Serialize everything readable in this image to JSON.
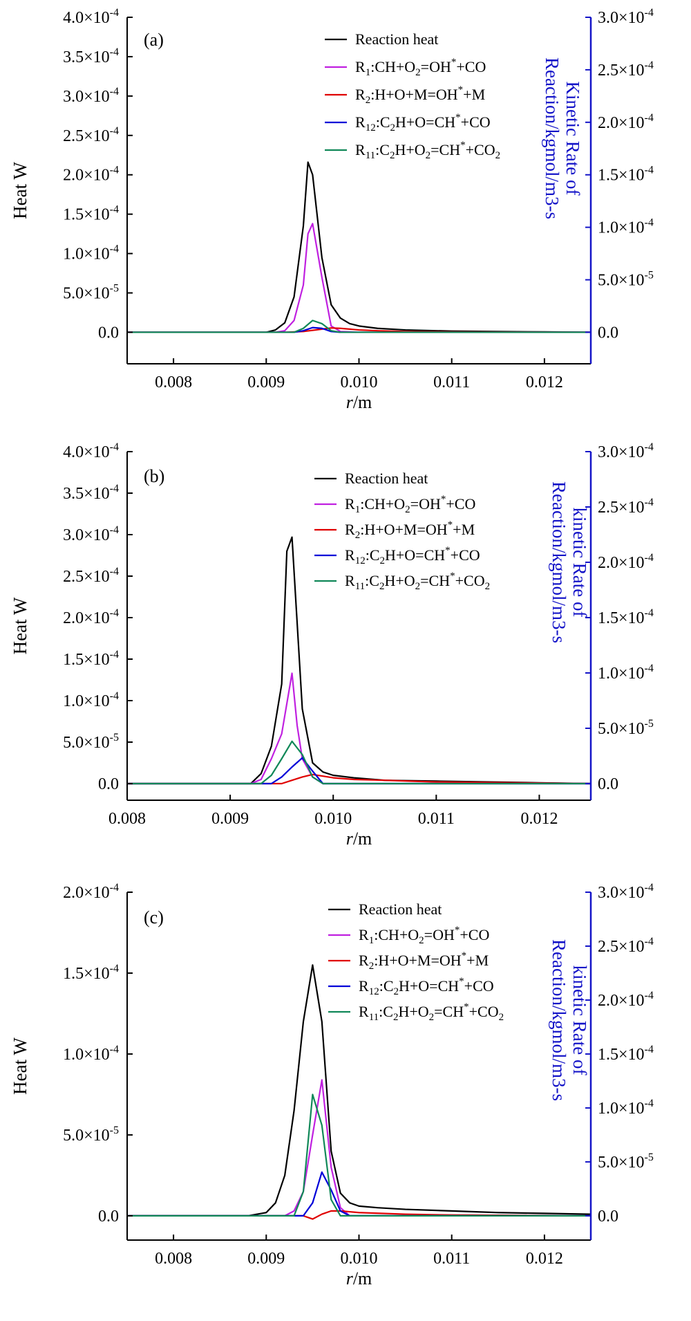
{
  "colors": {
    "reaction_heat": "#000000",
    "R1": "#c020e0",
    "R2": "#e00000",
    "R12": "#0000d8",
    "R11": "#108858",
    "right_axis": "#1414c8",
    "axis": "#000000"
  },
  "legend_entries": [
    {
      "id": "heat",
      "base": "Reaction heat",
      "sub": "",
      "formula": []
    },
    {
      "id": "R1",
      "base": "R",
      "sub": "1",
      "formula": [
        [
          "CH+O",
          ""
        ],
        [
          "2",
          "sub"
        ],
        [
          "=OH",
          ""
        ],
        [
          "*",
          "sup"
        ],
        [
          "+CO",
          ""
        ]
      ]
    },
    {
      "id": "R2",
      "base": "R",
      "sub": "2",
      "formula": [
        [
          "H+O+M=OH",
          ""
        ],
        [
          "*",
          "sup"
        ],
        [
          "+M",
          ""
        ]
      ]
    },
    {
      "id": "R12",
      "base": "R",
      "sub": "12",
      "formula": [
        [
          "C",
          ""
        ],
        [
          "2",
          "sub"
        ],
        [
          "H+O=CH",
          ""
        ],
        [
          "*",
          "sup"
        ],
        [
          "+CO",
          ""
        ]
      ]
    },
    {
      "id": "R11",
      "base": "R",
      "sub": "11",
      "formula": [
        [
          "C",
          ""
        ],
        [
          "2",
          "sub"
        ],
        [
          "H+O",
          ""
        ],
        [
          "2",
          "sub"
        ],
        [
          "=CH",
          ""
        ],
        [
          "*",
          "sup"
        ],
        [
          "+CO",
          ""
        ],
        [
          "2",
          "sub"
        ]
      ]
    }
  ],
  "chart_data": [
    {
      "type": "line",
      "panel_label": "(a)",
      "xlabel": "r/m",
      "ylabel_left": "Heat W",
      "ylabel_right_lines": [
        "Kinetic Rate of",
        "Reaction/kgmol/m3-s"
      ],
      "xlim": [
        0.0075,
        0.0125
      ],
      "x_ticks": [
        0.008,
        0.009,
        0.01,
        0.011,
        0.012
      ],
      "x_tick_labels": [
        "0.008",
        "0.009",
        "0.010",
        "0.011",
        "0.012"
      ],
      "ylim_left": [
        -4e-05,
        0.0004
      ],
      "y_ticks_left": [
        0,
        5e-05,
        0.0001,
        0.00015,
        0.0002,
        0.00025,
        0.0003,
        0.00035,
        0.0004
      ],
      "y_tick_labels_left": [
        [
          "0.0",
          ""
        ],
        [
          "5.0×10",
          "-5"
        ],
        [
          "1.0×10",
          "-4"
        ],
        [
          "1.5×10",
          "-4"
        ],
        [
          "2.0×10",
          "-4"
        ],
        [
          "2.5×10",
          "-4"
        ],
        [
          "3.0×10",
          "-4"
        ],
        [
          "3.5×10",
          "-4"
        ],
        [
          "4.0×10",
          "-4"
        ]
      ],
      "ylim_right": [
        -3e-05,
        0.0003
      ],
      "y_ticks_right": [
        0,
        5e-05,
        0.0001,
        0.00015,
        0.0002,
        0.00025,
        0.0003
      ],
      "y_tick_labels_right": [
        [
          "0.0",
          ""
        ],
        [
          "5.0×10",
          "-5"
        ],
        [
          "1.0×10",
          "-4"
        ],
        [
          "1.5×10",
          "-4"
        ],
        [
          "2.0×10",
          "-4"
        ],
        [
          "2.5×10",
          "-4"
        ],
        [
          "3.0×10",
          "-4"
        ]
      ],
      "legend": "top-center",
      "series": [
        {
          "id": "heat",
          "x": [
            0.0075,
            0.009,
            0.0091,
            0.0092,
            0.0093,
            0.0094,
            0.00945,
            0.0095,
            0.0096,
            0.0097,
            0.0098,
            0.0099,
            0.01,
            0.0102,
            0.0105,
            0.011,
            0.0115,
            0.012,
            0.0125
          ],
          "y": [
            0,
            0,
            3e-06,
            1.2e-05,
            4.5e-05,
            0.000135,
            0.000216,
            0.0002,
            9.5e-05,
            3.5e-05,
            1.8e-05,
            1.1e-05,
            8e-06,
            5e-06,
            3e-06,
            1.5e-06,
            1e-06,
            5e-07,
            0
          ]
        },
        {
          "id": "R1",
          "x": [
            0.0075,
            0.0091,
            0.0092,
            0.0093,
            0.0094,
            0.00945,
            0.0095,
            0.0096,
            0.0097,
            0.0098,
            0.01,
            0.0125
          ],
          "y": [
            0,
            0,
            2e-06,
            1.5e-05,
            6e-05,
            0.000125,
            0.000138,
            7e-05,
            8e-06,
            1e-06,
            0,
            0
          ]
        },
        {
          "id": "R2",
          "x": [
            0.0075,
            0.0092,
            0.0094,
            0.0096,
            0.0097,
            0.0098,
            0.01,
            0.0102,
            0.0105,
            0.011,
            0.0125
          ],
          "y": [
            0,
            0,
            1e-06,
            4e-06,
            5.5e-06,
            5e-06,
            3e-06,
            2e-06,
            1e-06,
            5e-07,
            0
          ]
        },
        {
          "id": "R12",
          "x": [
            0.0075,
            0.0093,
            0.0094,
            0.0095,
            0.0096,
            0.0097,
            0.0098,
            0.0125
          ],
          "y": [
            0,
            0,
            2e-06,
            6e-06,
            5e-06,
            1e-06,
            0,
            0
          ]
        },
        {
          "id": "R11",
          "x": [
            0.0075,
            0.0093,
            0.0094,
            0.0095,
            0.0096,
            0.0097,
            0.0098,
            0.0125
          ],
          "y": [
            0,
            0,
            5e-06,
            1.5e-05,
            1.1e-05,
            2e-06,
            0,
            0
          ]
        }
      ]
    },
    {
      "type": "line",
      "panel_label": "(b)",
      "xlabel": "r/m",
      "ylabel_left": "Heat W",
      "ylabel_right_lines": [
        "kinetic Rate of",
        "Reaction/kgmol/m3-s"
      ],
      "xlim": [
        0.008,
        0.0125
      ],
      "x_ticks": [
        0.008,
        0.009,
        0.01,
        0.011,
        0.012
      ],
      "x_tick_labels": [
        "0.008",
        "0.009",
        "0.010",
        "0.011",
        "0.012"
      ],
      "ylim_left": [
        -2e-05,
        0.0004
      ],
      "y_ticks_left": [
        0,
        5e-05,
        0.0001,
        0.00015,
        0.0002,
        0.00025,
        0.0003,
        0.00035,
        0.0004
      ],
      "y_tick_labels_left": [
        [
          "0.0",
          ""
        ],
        [
          "5.0×10",
          "-5"
        ],
        [
          "1.0×10",
          "-4"
        ],
        [
          "1.5×10",
          "-4"
        ],
        [
          "2.0×10",
          "-4"
        ],
        [
          "2.5×10",
          "-4"
        ],
        [
          "3.0×10",
          "-4"
        ],
        [
          "3.5×10",
          "-4"
        ],
        [
          "4.0×10",
          "-4"
        ]
      ],
      "ylim_right": [
        -1.5e-05,
        0.0003
      ],
      "y_ticks_right": [
        0,
        5e-05,
        0.0001,
        0.00015,
        0.0002,
        0.00025,
        0.0003
      ],
      "y_tick_labels_right": [
        [
          "0.0",
          ""
        ],
        [
          "5.0×10",
          "-5"
        ],
        [
          "1.0×10",
          "-4"
        ],
        [
          "1.5×10",
          "-4"
        ],
        [
          "2.0×10",
          "-4"
        ],
        [
          "2.5×10",
          "-4"
        ],
        [
          "3.0×10",
          "-4"
        ]
      ],
      "legend": "top-center",
      "series": [
        {
          "id": "heat",
          "x": [
            0.008,
            0.0092,
            0.0093,
            0.0094,
            0.0095,
            0.00955,
            0.0096,
            0.0097,
            0.0098,
            0.0099,
            0.01,
            0.0102,
            0.0105,
            0.011,
            0.0115,
            0.012,
            0.0125
          ],
          "y": [
            0,
            0,
            1.2e-05,
            4.5e-05,
            0.00012,
            0.00028,
            0.000297,
            9e-05,
            2.5e-05,
            1.4e-05,
            1e-05,
            7e-06,
            4e-06,
            3e-06,
            2e-06,
            1e-06,
            0
          ]
        },
        {
          "id": "R1",
          "x": [
            0.008,
            0.0092,
            0.0093,
            0.0094,
            0.0095,
            0.0096,
            0.00965,
            0.0097,
            0.0098,
            0.0099,
            0.0125
          ],
          "y": [
            0,
            0,
            5e-06,
            3e-05,
            6e-05,
            0.000133,
            7e-05,
            3e-05,
            8e-06,
            0,
            0
          ]
        },
        {
          "id": "R2",
          "x": [
            0.008,
            0.0095,
            0.0096,
            0.0097,
            0.0098,
            0.0099,
            0.01,
            0.0102,
            0.0105,
            0.011,
            0.0125
          ],
          "y": [
            0,
            0,
            4e-06,
            8e-06,
            1.1e-05,
            9e-06,
            7e-06,
            5e-06,
            4e-06,
            2e-06,
            0
          ]
        },
        {
          "id": "R12",
          "x": [
            0.008,
            0.0094,
            0.0095,
            0.0096,
            0.0097,
            0.0098,
            0.0099,
            0.0125
          ],
          "y": [
            0,
            0,
            8e-06,
            2e-05,
            3.1e-05,
            1.5e-05,
            0,
            0
          ]
        },
        {
          "id": "R11",
          "x": [
            0.008,
            0.0093,
            0.0094,
            0.0095,
            0.0096,
            0.0097,
            0.0098,
            0.0099,
            0.0125
          ],
          "y": [
            0,
            0,
            1e-05,
            3e-05,
            5.1e-05,
            3.5e-05,
            8e-06,
            0,
            0
          ]
        }
      ]
    },
    {
      "type": "line",
      "panel_label": "(c)",
      "xlabel": "r/m",
      "ylabel_left": "Heat W",
      "ylabel_right_lines": [
        "kinetic Rate of",
        "Reaction/kgmol/m3-s"
      ],
      "xlim": [
        0.0075,
        0.0125
      ],
      "x_ticks": [
        0.008,
        0.009,
        0.01,
        0.011,
        0.012
      ],
      "x_tick_labels": [
        "0.008",
        "0.009",
        "0.010",
        "0.011",
        "0.012"
      ],
      "ylim_left": [
        -1.5e-05,
        0.0002
      ],
      "y_ticks_left": [
        0,
        5e-05,
        0.0001,
        0.00015,
        0.0002
      ],
      "y_tick_labels_left": [
        [
          "0.0",
          ""
        ],
        [
          "5.0×10",
          "-5"
        ],
        [
          "1.0×10",
          "-4"
        ],
        [
          "1.5×10",
          "-4"
        ],
        [
          "2.0×10",
          "-4"
        ]
      ],
      "ylim_right": [
        -2.25e-05,
        0.0003
      ],
      "y_ticks_right": [
        0,
        5e-05,
        0.0001,
        0.00015,
        0.0002,
        0.00025,
        0.0003
      ],
      "y_tick_labels_right": [
        [
          "0.0",
          ""
        ],
        [
          "5.0×10",
          "-5"
        ],
        [
          "1.0×10",
          "-4"
        ],
        [
          "1.5×10",
          "-4"
        ],
        [
          "2.0×10",
          "-4"
        ],
        [
          "2.5×10",
          "-4"
        ],
        [
          "3.0×10",
          "-4"
        ]
      ],
      "legend": "top-center",
      "series": [
        {
          "id": "heat",
          "x": [
            0.0075,
            0.0088,
            0.009,
            0.0091,
            0.0092,
            0.0093,
            0.0094,
            0.0095,
            0.0096,
            0.0097,
            0.0098,
            0.0099,
            0.01,
            0.0102,
            0.0105,
            0.011,
            0.0115,
            0.012,
            0.0125
          ],
          "y": [
            0,
            0,
            2e-06,
            8e-06,
            2.5e-05,
            6.5e-05,
            0.00012,
            0.000155,
            0.00012,
            4e-05,
            1.4e-05,
            8e-06,
            6e-06,
            5e-06,
            4e-06,
            3e-06,
            2e-06,
            1.5e-06,
            1e-06
          ]
        },
        {
          "id": "R1",
          "x": [
            0.0075,
            0.0092,
            0.0093,
            0.0094,
            0.0095,
            0.0096,
            0.0097,
            0.0098,
            0.0099,
            0.0125
          ],
          "y": [
            0,
            0,
            3e-06,
            1.5e-05,
            5e-05,
            8.4e-05,
            3e-05,
            5e-06,
            0,
            0
          ]
        },
        {
          "id": "R2",
          "x": [
            0.0075,
            0.0094,
            0.0095,
            0.0096,
            0.0097,
            0.0098,
            0.01,
            0.0105,
            0.011,
            0.0125
          ],
          "y": [
            0,
            0,
            -2e-06,
            1e-06,
            3e-06,
            3e-06,
            2e-06,
            1e-06,
            5e-07,
            0
          ]
        },
        {
          "id": "R12",
          "x": [
            0.0075,
            0.0094,
            0.0095,
            0.0096,
            0.0097,
            0.0098,
            0.0099,
            0.0125
          ],
          "y": [
            0,
            0,
            8e-06,
            2.7e-05,
            1.6e-05,
            3e-06,
            0,
            0
          ]
        },
        {
          "id": "R11",
          "x": [
            0.0075,
            0.0093,
            0.0094,
            0.0095,
            0.0096,
            0.0097,
            0.0098,
            0.0125
          ],
          "y": [
            0,
            0,
            1.5e-05,
            7.5e-05,
            5.6e-05,
            1e-05,
            0,
            0
          ]
        }
      ]
    }
  ]
}
